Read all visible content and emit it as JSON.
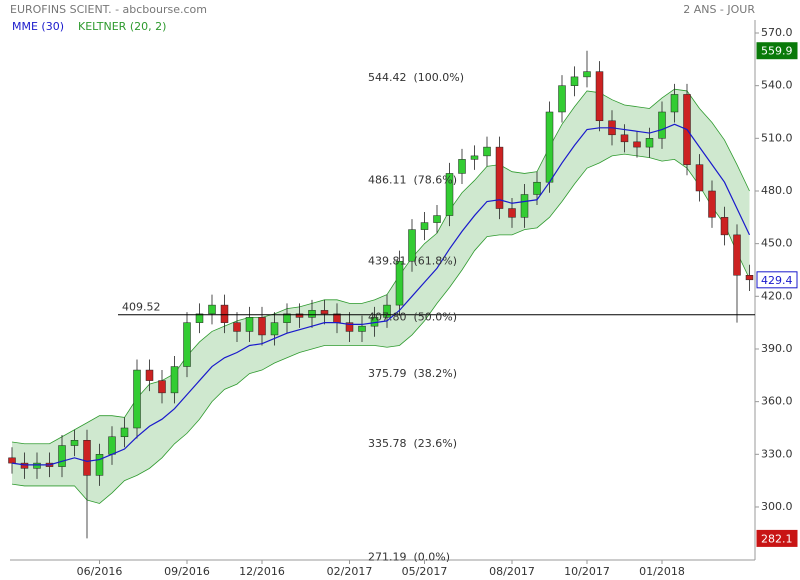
{
  "chart_data": {
    "type": "candlestick",
    "title": "EUROFINS SCIENT. - abcbourse.com",
    "period": "2 ANS - JOUR",
    "categories": [
      null,
      null,
      null,
      null,
      null,
      null,
      null,
      "06/2016",
      null,
      null,
      null,
      null,
      null,
      null,
      "09/2016",
      null,
      null,
      null,
      null,
      null,
      "12/2016",
      null,
      null,
      null,
      null,
      null,
      null,
      "02/2017",
      null,
      null,
      null,
      null,
      null,
      "05/2017",
      null,
      null,
      null,
      null,
      null,
      null,
      "08/2017",
      null,
      null,
      null,
      null,
      null,
      "10/2017",
      null,
      null,
      null,
      null,
      null,
      "01/2018",
      null,
      null,
      null,
      null,
      null,
      null,
      null
    ],
    "open": [
      328,
      325,
      322,
      325,
      323,
      335,
      338,
      318,
      330,
      340,
      345,
      378,
      372,
      365,
      380,
      405,
      410,
      415,
      405,
      400,
      408,
      398,
      405,
      410,
      408,
      412,
      410,
      405,
      400,
      403,
      408,
      415,
      440,
      458,
      462,
      466,
      490,
      498,
      500,
      505,
      470,
      465,
      478,
      485,
      525,
      540,
      545,
      548,
      520,
      512,
      508,
      505,
      510,
      525,
      535,
      495,
      480,
      465,
      455,
      432
    ],
    "high": [
      334,
      331,
      331,
      331,
      341,
      344,
      344,
      336,
      346,
      351,
      384,
      384,
      378,
      386,
      411,
      416,
      421,
      421,
      411,
      414,
      414,
      411,
      416,
      416,
      418,
      418,
      416,
      411,
      409,
      414,
      421,
      446,
      464,
      468,
      472,
      496,
      504,
      506,
      511,
      511,
      476,
      484,
      491,
      531,
      546,
      551,
      559.9,
      554,
      526,
      518,
      514,
      516,
      531,
      541,
      541,
      501,
      486,
      471,
      461,
      438
    ],
    "low": [
      319,
      316,
      316,
      317,
      317,
      329,
      282.1,
      312,
      324,
      334,
      339,
      366,
      359,
      359,
      374,
      399,
      404,
      399,
      394,
      394,
      392,
      392,
      399,
      402,
      402,
      404,
      399,
      394,
      394,
      397,
      402,
      409,
      434,
      452,
      456,
      460,
      484,
      492,
      494,
      464,
      459,
      459,
      472,
      479,
      519,
      534,
      539,
      514,
      506,
      502,
      499,
      499,
      504,
      519,
      489,
      474,
      459,
      449,
      405,
      423
    ],
    "close": [
      325,
      322,
      325,
      323,
      335,
      338,
      318,
      330,
      340,
      345,
      378,
      372,
      365,
      380,
      405,
      410,
      415,
      405,
      400,
      408,
      398,
      405,
      410,
      408,
      412,
      410,
      405,
      400,
      403,
      408,
      415,
      440,
      458,
      462,
      466,
      490,
      498,
      500,
      505,
      470,
      465,
      478,
      485,
      525,
      540,
      545,
      548,
      520,
      512,
      508,
      505,
      510,
      525,
      535,
      495,
      480,
      465,
      455,
      432,
      429.4
    ],
    "up_color": "#33cc33",
    "down_color": "#cc2222",
    "ema": {
      "name": "MME (30)",
      "color": "#1a1acc",
      "values": [
        325,
        324,
        324,
        324,
        326,
        328,
        326,
        327,
        330,
        333,
        340,
        346,
        350,
        356,
        364,
        372,
        380,
        385,
        388,
        392,
        393,
        396,
        399,
        401,
        403,
        405,
        405,
        404,
        404,
        405,
        406,
        412,
        420,
        428,
        436,
        447,
        457,
        466,
        474,
        475,
        473,
        474,
        475,
        485,
        496,
        506,
        515,
        516,
        516,
        515,
        514,
        513,
        515,
        518,
        515,
        505,
        495,
        485,
        470,
        455
      ]
    },
    "keltner": {
      "name": "KELTNER (20, 2)",
      "color": "#2e9a2e",
      "fill": "#cfe8cf",
      "upper": [
        337,
        336,
        336,
        336,
        340,
        344,
        348,
        352,
        352,
        351,
        362,
        370,
        372,
        376,
        386,
        394,
        400,
        403,
        406,
        408,
        408,
        410,
        413,
        414,
        416,
        418,
        418,
        416,
        416,
        418,
        421,
        432,
        442,
        450,
        456,
        469,
        479,
        486,
        494,
        495,
        491,
        490,
        491,
        505,
        518,
        528,
        537,
        536,
        532,
        529,
        528,
        527,
        533,
        538,
        537,
        527,
        519,
        509,
        495,
        480
      ],
      "lower": [
        313,
        312,
        312,
        312,
        312,
        312,
        304,
        302,
        308,
        315,
        318,
        322,
        328,
        336,
        342,
        350,
        360,
        367,
        370,
        376,
        378,
        382,
        385,
        388,
        390,
        392,
        392,
        392,
        392,
        392,
        391,
        392,
        398,
        406,
        416,
        425,
        435,
        446,
        454,
        455,
        455,
        458,
        459,
        465,
        474,
        484,
        493,
        496,
        500,
        501,
        500,
        499,
        497,
        498,
        493,
        483,
        471,
        461,
        445,
        430
      ]
    },
    "ylim": [
      269.8,
      577.4
    ],
    "yticks": [
      {
        "value": 300,
        "label": "300.0"
      },
      {
        "value": 330,
        "label": "330.0"
      },
      {
        "value": 360,
        "label": "360.0"
      },
      {
        "value": 390,
        "label": "390.0"
      },
      {
        "value": 420,
        "label": "420.0"
      },
      {
        "value": 450,
        "label": "450.0"
      },
      {
        "value": 480,
        "label": "480.0"
      },
      {
        "value": 510,
        "label": "510.0"
      },
      {
        "value": 540,
        "label": "540.0"
      },
      {
        "value": 570,
        "label": "570.0"
      }
    ],
    "fib_levels": [
      {
        "value": 544.42,
        "label": "544.42  (100.0%)"
      },
      {
        "value": 486.11,
        "label": "486.11  (78.6%)"
      },
      {
        "value": 439.81,
        "label": "439.81  (61.8%)"
      },
      {
        "value": 407.8,
        "label": "407.80  (50.0%)"
      },
      {
        "value": 375.79,
        "label": "375.79  (38.2%)"
      },
      {
        "value": 335.78,
        "label": "335.78  (23.6%)"
      },
      {
        "value": 271.19,
        "label": "271.19  (0.0%)"
      }
    ],
    "hline": 409.52,
    "badges": [
      {
        "value": 559.9,
        "color": "#0a7a0a"
      },
      {
        "value": 429.4,
        "color": "#1a1acc"
      },
      {
        "value": 282.1,
        "color": "#c81414"
      }
    ]
  }
}
